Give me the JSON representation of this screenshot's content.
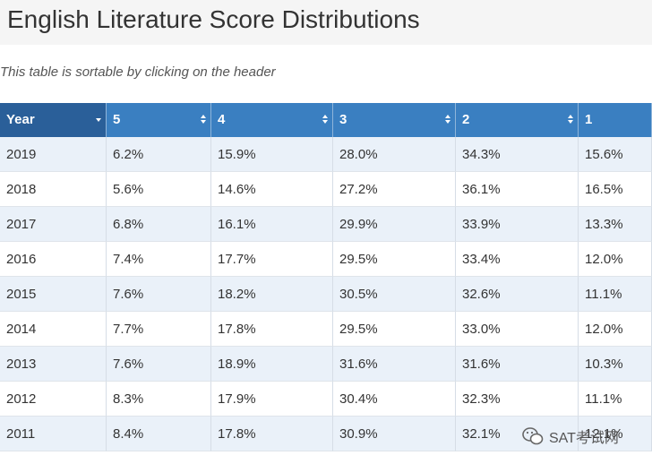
{
  "header": {
    "title": "English Literature Score Distributions"
  },
  "note": "This table is sortable by clicking on the header",
  "table": {
    "headers": [
      "Year",
      "5",
      "4",
      "3",
      "2",
      "1"
    ],
    "rows": [
      [
        "2019",
        "6.2%",
        "15.9%",
        "28.0%",
        "34.3%",
        "15.6%"
      ],
      [
        "2018",
        "5.6%",
        "14.6%",
        "27.2%",
        "36.1%",
        "16.5%"
      ],
      [
        "2017",
        "6.8%",
        "16.1%",
        "29.9%",
        "33.9%",
        "13.3%"
      ],
      [
        "2016",
        "7.4%",
        "17.7%",
        "29.5%",
        "33.4%",
        "12.0%"
      ],
      [
        "2015",
        "7.6%",
        "18.2%",
        "30.5%",
        "32.6%",
        "11.1%"
      ],
      [
        "2014",
        "7.7%",
        "17.8%",
        "29.5%",
        "33.0%",
        "12.0%"
      ],
      [
        "2013",
        "7.6%",
        "18.9%",
        "31.6%",
        "31.6%",
        "10.3%"
      ],
      [
        "2012",
        "8.3%",
        "17.9%",
        "30.4%",
        "32.3%",
        "11.1%"
      ],
      [
        "2011",
        "8.4%",
        "17.8%",
        "30.9%",
        "32.1%",
        "12.1%"
      ]
    ]
  },
  "watermark": "SAT考试网"
}
